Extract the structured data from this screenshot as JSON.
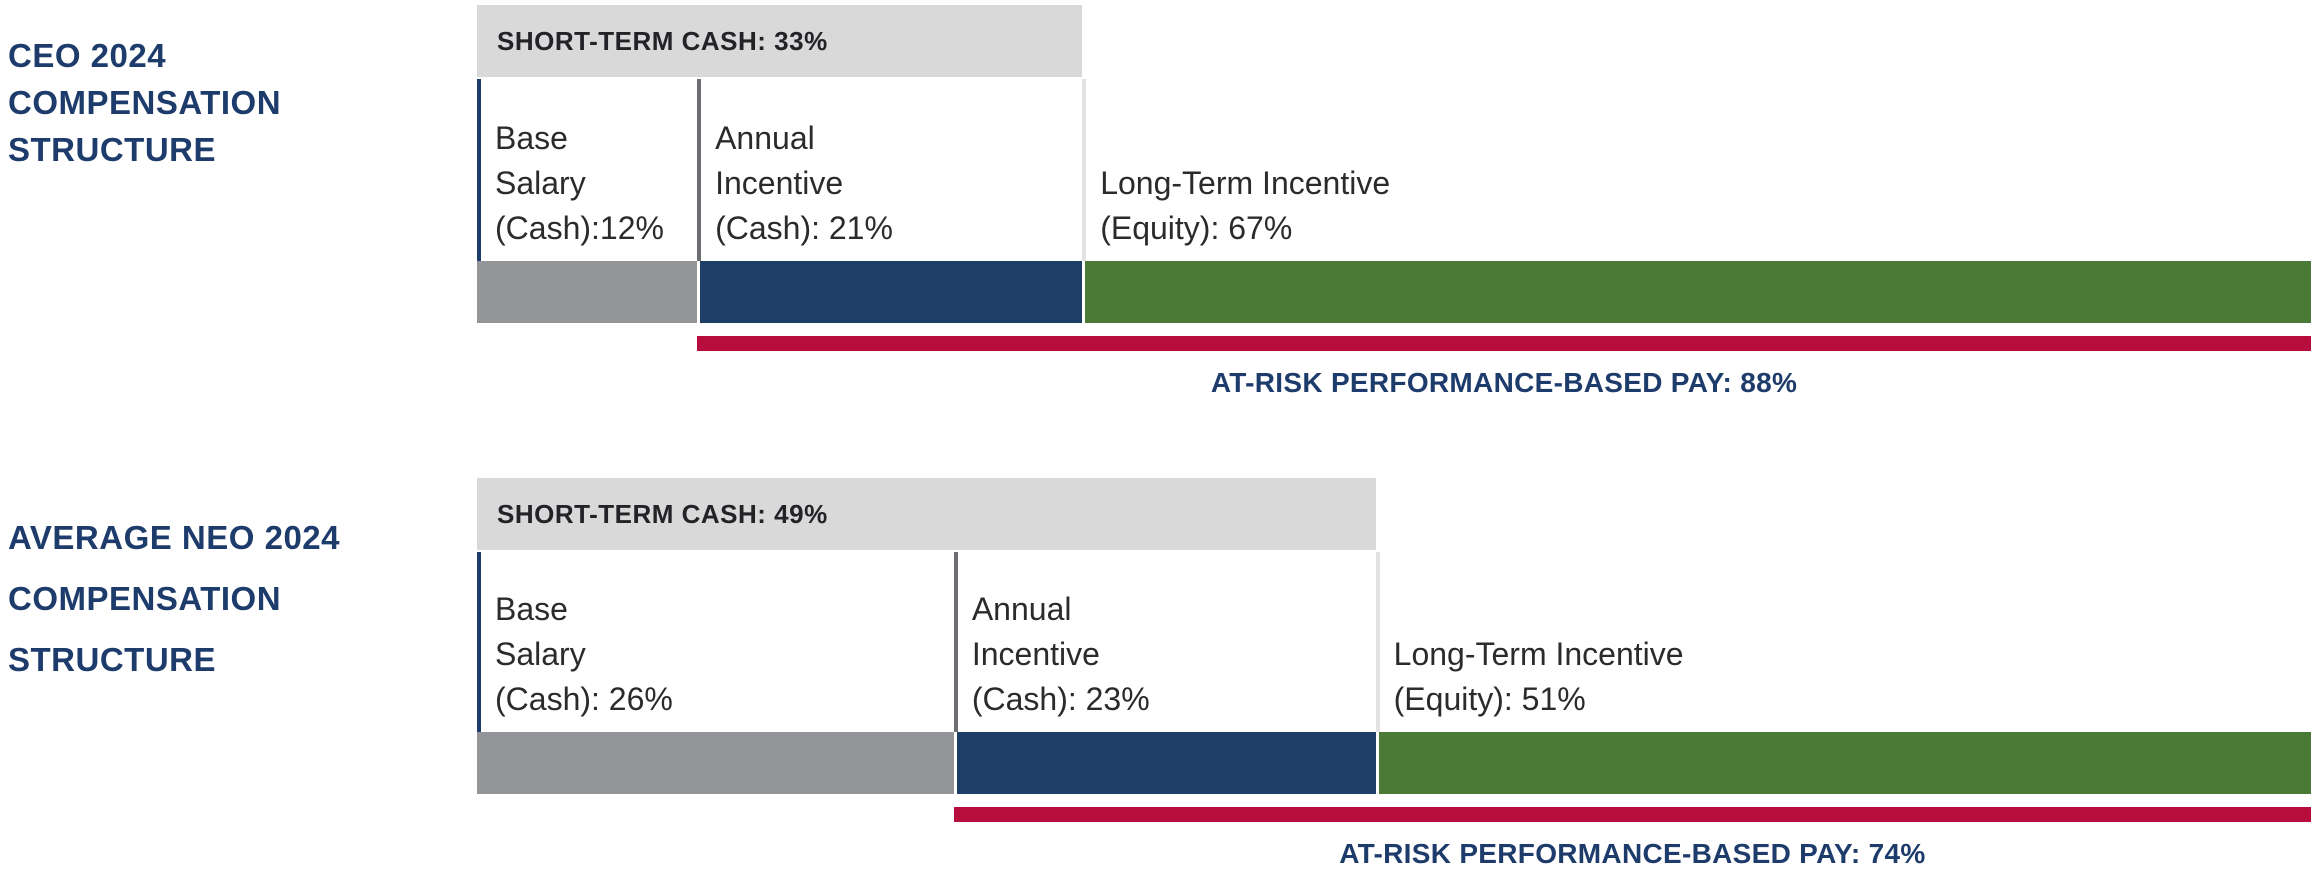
{
  "colors": {
    "title_navy": "#1e3c6b",
    "header_bg": "#d9d9d9",
    "header_text": "#232227",
    "label_text": "#2b2b2b",
    "divider_navy": "#1e3c6b",
    "divider_gray": "#6d6e71",
    "divider_light": "#e2e2e2",
    "bar_gray": "#939598",
    "bar_navy": "#1c3e67",
    "bar_green": "#4b7936",
    "at_risk_red": "#b60d3c"
  },
  "chart_data": [
    {
      "type": "bar",
      "orientation": "horizontal-stacked",
      "title": "CEO 2024 COMPENSATION STRUCTURE",
      "title_lines": [
        "CEO 2024",
        "COMPENSATION",
        "STRUCTURE"
      ],
      "unit": "%",
      "xlim": [
        0,
        100
      ],
      "categories": [
        "Base Salary (Cash)",
        "Annual Incentive (Cash)",
        "Long-Term Incentive (Equity)"
      ],
      "values": [
        12,
        21,
        67
      ],
      "segments": [
        {
          "category": "Base Salary (Cash)",
          "value": 12,
          "color": "#939598",
          "label_lines": [
            "Base",
            "Salary",
            "(Cash):12%"
          ]
        },
        {
          "category": "Annual Incentive (Cash)",
          "value": 21,
          "color": "#1c3e67",
          "label_lines": [
            "Annual",
            "Incentive",
            "(Cash): 21%"
          ]
        },
        {
          "category": "Long-Term Incentive (Equity)",
          "value": 67,
          "color": "#4b7936",
          "label_lines": [
            "Long-Term Incentive",
            "(Equity): 67%"
          ]
        }
      ],
      "short_term_cash": {
        "label": "SHORT-TERM CASH: 33%",
        "value": 33
      },
      "at_risk": {
        "label": "AT-RISK PERFORMANCE-BASED PAY: 88%",
        "value": 88,
        "color": "#b60d3c"
      }
    },
    {
      "type": "bar",
      "orientation": "horizontal-stacked",
      "title": "AVERAGE NEO 2024 COMPENSATION STRUCTURE",
      "title_lines": [
        "AVERAGE NEO 2024",
        "COMPENSATION",
        "STRUCTURE"
      ],
      "unit": "%",
      "xlim": [
        0,
        100
      ],
      "categories": [
        "Base Salary (Cash)",
        "Annual Incentive (Cash)",
        "Long-Term Incentive (Equity)"
      ],
      "values": [
        26,
        23,
        51
      ],
      "segments": [
        {
          "category": "Base Salary (Cash)",
          "value": 26,
          "color": "#939598",
          "label_lines": [
            "Base",
            "Salary",
            "(Cash): 26%"
          ]
        },
        {
          "category": "Annual Incentive (Cash)",
          "value": 23,
          "color": "#1c3e67",
          "label_lines": [
            "Annual",
            "Incentive",
            "(Cash): 23%"
          ]
        },
        {
          "category": "Long-Term Incentive (Equity)",
          "value": 51,
          "color": "#4b7936",
          "label_lines": [
            "Long-Term Incentive",
            "(Equity): 51%"
          ]
        }
      ],
      "short_term_cash": {
        "label": "SHORT-TERM CASH: 49%",
        "value": 49
      },
      "at_risk": {
        "label": "AT-RISK PERFORMANCE-BASED PAY: 74%",
        "value": 74,
        "color": "#b60d3c"
      }
    }
  ]
}
